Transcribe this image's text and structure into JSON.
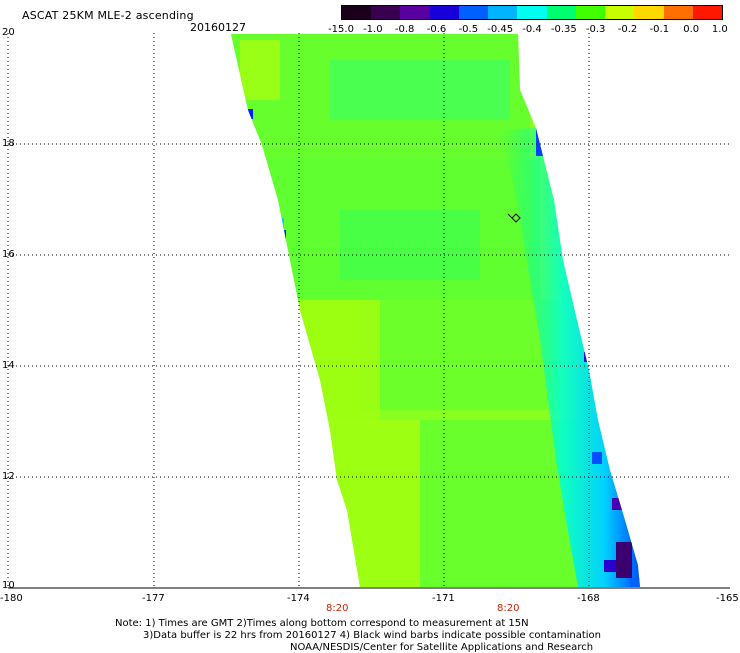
{
  "title": "ASCAT 25KM MLE-2 ascending",
  "date": "20160127",
  "colorbar": {
    "labels": [
      "-15.0",
      "-1.0",
      "-0.8",
      "-0.6",
      "-0.5",
      "-0.45",
      "-0.4",
      "-0.35",
      "-0.3",
      "-0.2",
      "-0.1",
      "0.0",
      "1.0"
    ],
    "colors": [
      "#1a001a",
      "#3a0050",
      "#5a00a0",
      "#1a00d8",
      "#0060ff",
      "#00b4ff",
      "#00fff0",
      "#00ff70",
      "#40ff00",
      "#c8ff00",
      "#ffd800",
      "#ff7000",
      "#ff1800"
    ]
  },
  "axes": {
    "x_ticks": [
      "-180",
      "-177",
      "-174",
      "-171",
      "-168",
      "-165"
    ],
    "y_ticks": [
      "20",
      "18",
      "16",
      "14",
      "12",
      "10"
    ]
  },
  "times": [
    "8:20",
    "8:20"
  ],
  "notes": [
    "Note: 1) Times are GMT 2)Times along bottom correspond to measurement at 15N",
    "3)Data buffer is 22 hrs from 20160127 4) Black wind barbs indicate possible contamination",
    "NOAA/NESDIS/Center for Satellite Applications and Research"
  ],
  "map_data": {
    "lon_range": [
      -180,
      -165
    ],
    "lat_range": [
      10,
      20
    ],
    "swath": "ascending",
    "dominant_value_range": [
      -0.35,
      -0.2
    ],
    "east_edge_value_range": [
      -1.0,
      -0.45
    ],
    "wind_barb_count": 1
  }
}
